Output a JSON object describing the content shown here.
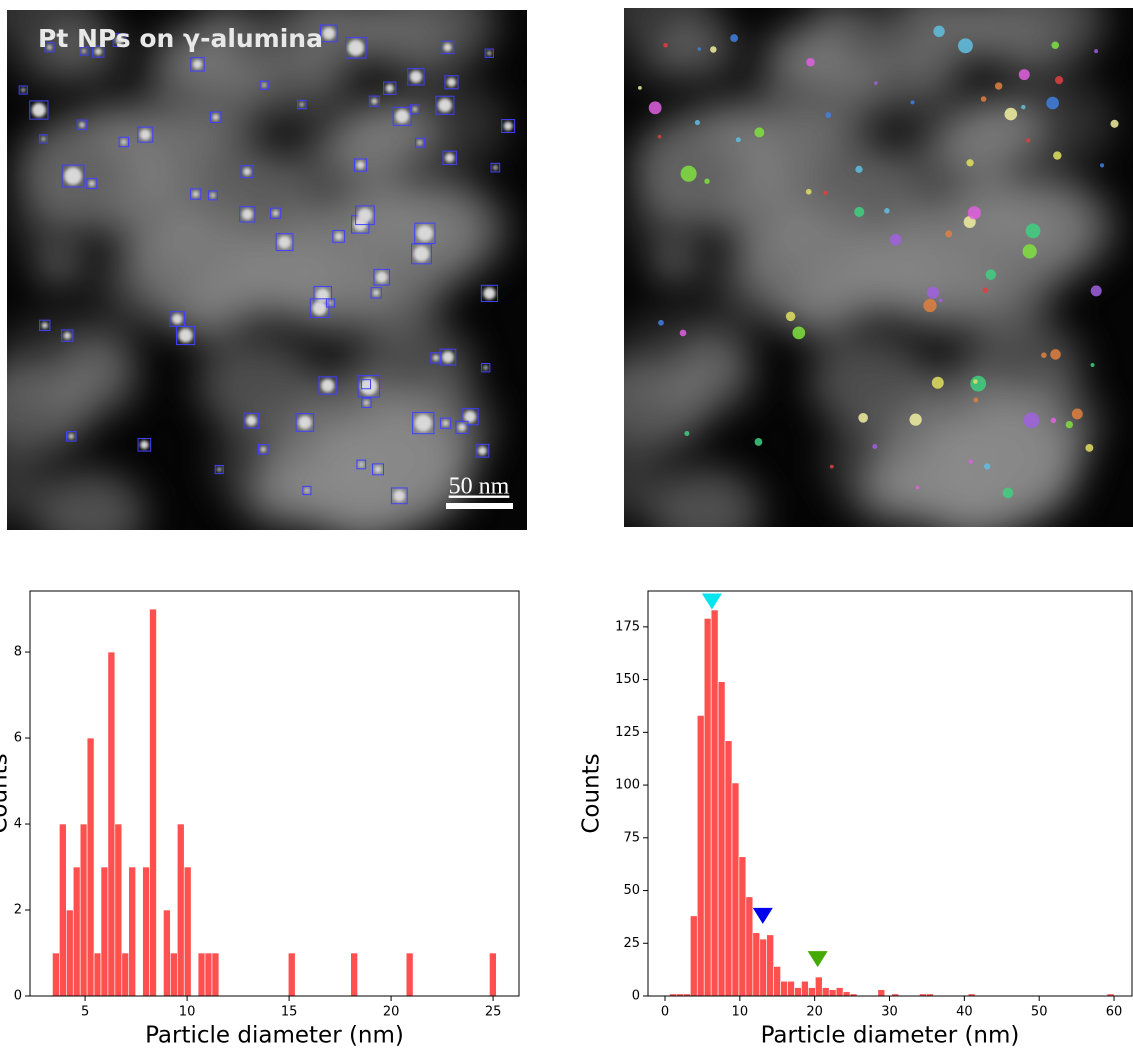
{
  "image": {
    "title": "Pt NPs on γ-alumina",
    "scale_bar": "50 nm"
  },
  "chart_data": [
    {
      "type": "histogram",
      "color": "#ff5050",
      "xlabel": "Particle diameter (nm)",
      "ylabel": "Counts",
      "bins": [
        3.4,
        3.74,
        4.08,
        4.42,
        4.76,
        5.1,
        5.44,
        5.78,
        6.12,
        6.46,
        6.8,
        7.14,
        7.48,
        7.82,
        8.16,
        8.5,
        8.84,
        9.18,
        9.52,
        9.86,
        10.2,
        10.54,
        10.88,
        11.22,
        11.56,
        11.9,
        12.24,
        12.58,
        12.92,
        13.26,
        13.6,
        13.94,
        14.28,
        14.62,
        14.96,
        15.3,
        15.64,
        15.98,
        16.32,
        16.66,
        17.0,
        17.34,
        17.68,
        18.02,
        18.36,
        18.7,
        19.04,
        19.38,
        19.72,
        20.06,
        20.4,
        20.74,
        21.08,
        21.42,
        21.76,
        22.1,
        22.44,
        22.78,
        23.12,
        23.46,
        23.8,
        24.14,
        24.48,
        24.82,
        25.16
      ],
      "counts": [
        1,
        4,
        2,
        3,
        4,
        6,
        1,
        3,
        8,
        4,
        1,
        3,
        0,
        3,
        9,
        0,
        2,
        1,
        4,
        3,
        0,
        1,
        1,
        1,
        0,
        0,
        0,
        0,
        0,
        0,
        0,
        0,
        0,
        0,
        1,
        0,
        0,
        0,
        0,
        0,
        0,
        0,
        0,
        1,
        0,
        0,
        0,
        0,
        0,
        0,
        0,
        1,
        0,
        0,
        0,
        0,
        0,
        0,
        0,
        0,
        0,
        0,
        0,
        1
      ],
      "xlim": [
        2.3,
        26.27
      ],
      "ylim": [
        0,
        9.42
      ],
      "xticks": [
        5,
        10,
        15,
        20,
        25
      ],
      "yticks": [
        0,
        2,
        4,
        6,
        8
      ]
    },
    {
      "type": "histogram",
      "color": "#ff5050",
      "xlabel": "Particle diameter (nm)",
      "ylabel": "Counts",
      "bins": [
        0.6,
        1.528,
        2.456,
        3.384,
        4.312,
        5.24,
        6.168,
        7.096,
        8.024,
        8.952,
        9.88,
        10.808,
        11.736,
        12.664,
        13.592,
        14.52,
        15.448,
        16.376,
        17.304,
        18.232,
        19.16,
        20.088,
        21.016,
        21.944,
        22.872,
        23.8,
        24.728,
        25.656,
        26.584,
        27.512,
        28.44,
        29.368,
        30.296,
        31.224,
        32.152,
        33.08,
        34.008,
        34.936,
        35.864,
        36.792,
        37.72,
        38.648,
        39.576,
        40.504,
        41.432,
        42.36,
        43.288,
        44.216,
        45.144,
        46.072,
        47.0,
        47.928,
        48.856,
        49.784,
        50.712,
        51.64,
        52.568,
        53.496,
        54.424,
        55.352,
        56.28,
        57.208,
        58.136,
        59.064,
        59.992
      ],
      "counts": [
        1,
        1,
        1,
        38,
        133,
        179,
        183,
        149,
        121,
        101,
        66,
        47,
        30,
        27,
        29,
        14,
        7,
        7,
        4,
        7,
        4,
        9,
        4,
        3,
        4,
        2,
        1,
        0,
        0,
        0,
        3,
        0,
        1,
        0,
        0,
        0,
        1,
        1,
        0,
        0,
        0,
        0,
        0,
        1,
        0,
        0,
        0,
        0,
        0,
        0,
        0,
        0,
        0,
        0,
        0,
        0,
        0,
        0,
        0,
        0,
        0,
        0,
        0,
        1
      ],
      "xlim": [
        -2.27,
        62.4
      ],
      "ylim": [
        0,
        192
      ],
      "xticks": [
        0,
        10,
        20,
        30,
        40,
        50,
        60
      ],
      "yticks": [
        0,
        25,
        50,
        75,
        100,
        125,
        150,
        175
      ],
      "markers": [
        {
          "x": 6.27,
          "y": 187,
          "color": "#00e5ee"
        },
        {
          "x": 13.07,
          "y": 38,
          "color": "#0000ee"
        },
        {
          "x": 20.4,
          "y": 17.5,
          "color": "#44aa00"
        }
      ]
    }
  ]
}
